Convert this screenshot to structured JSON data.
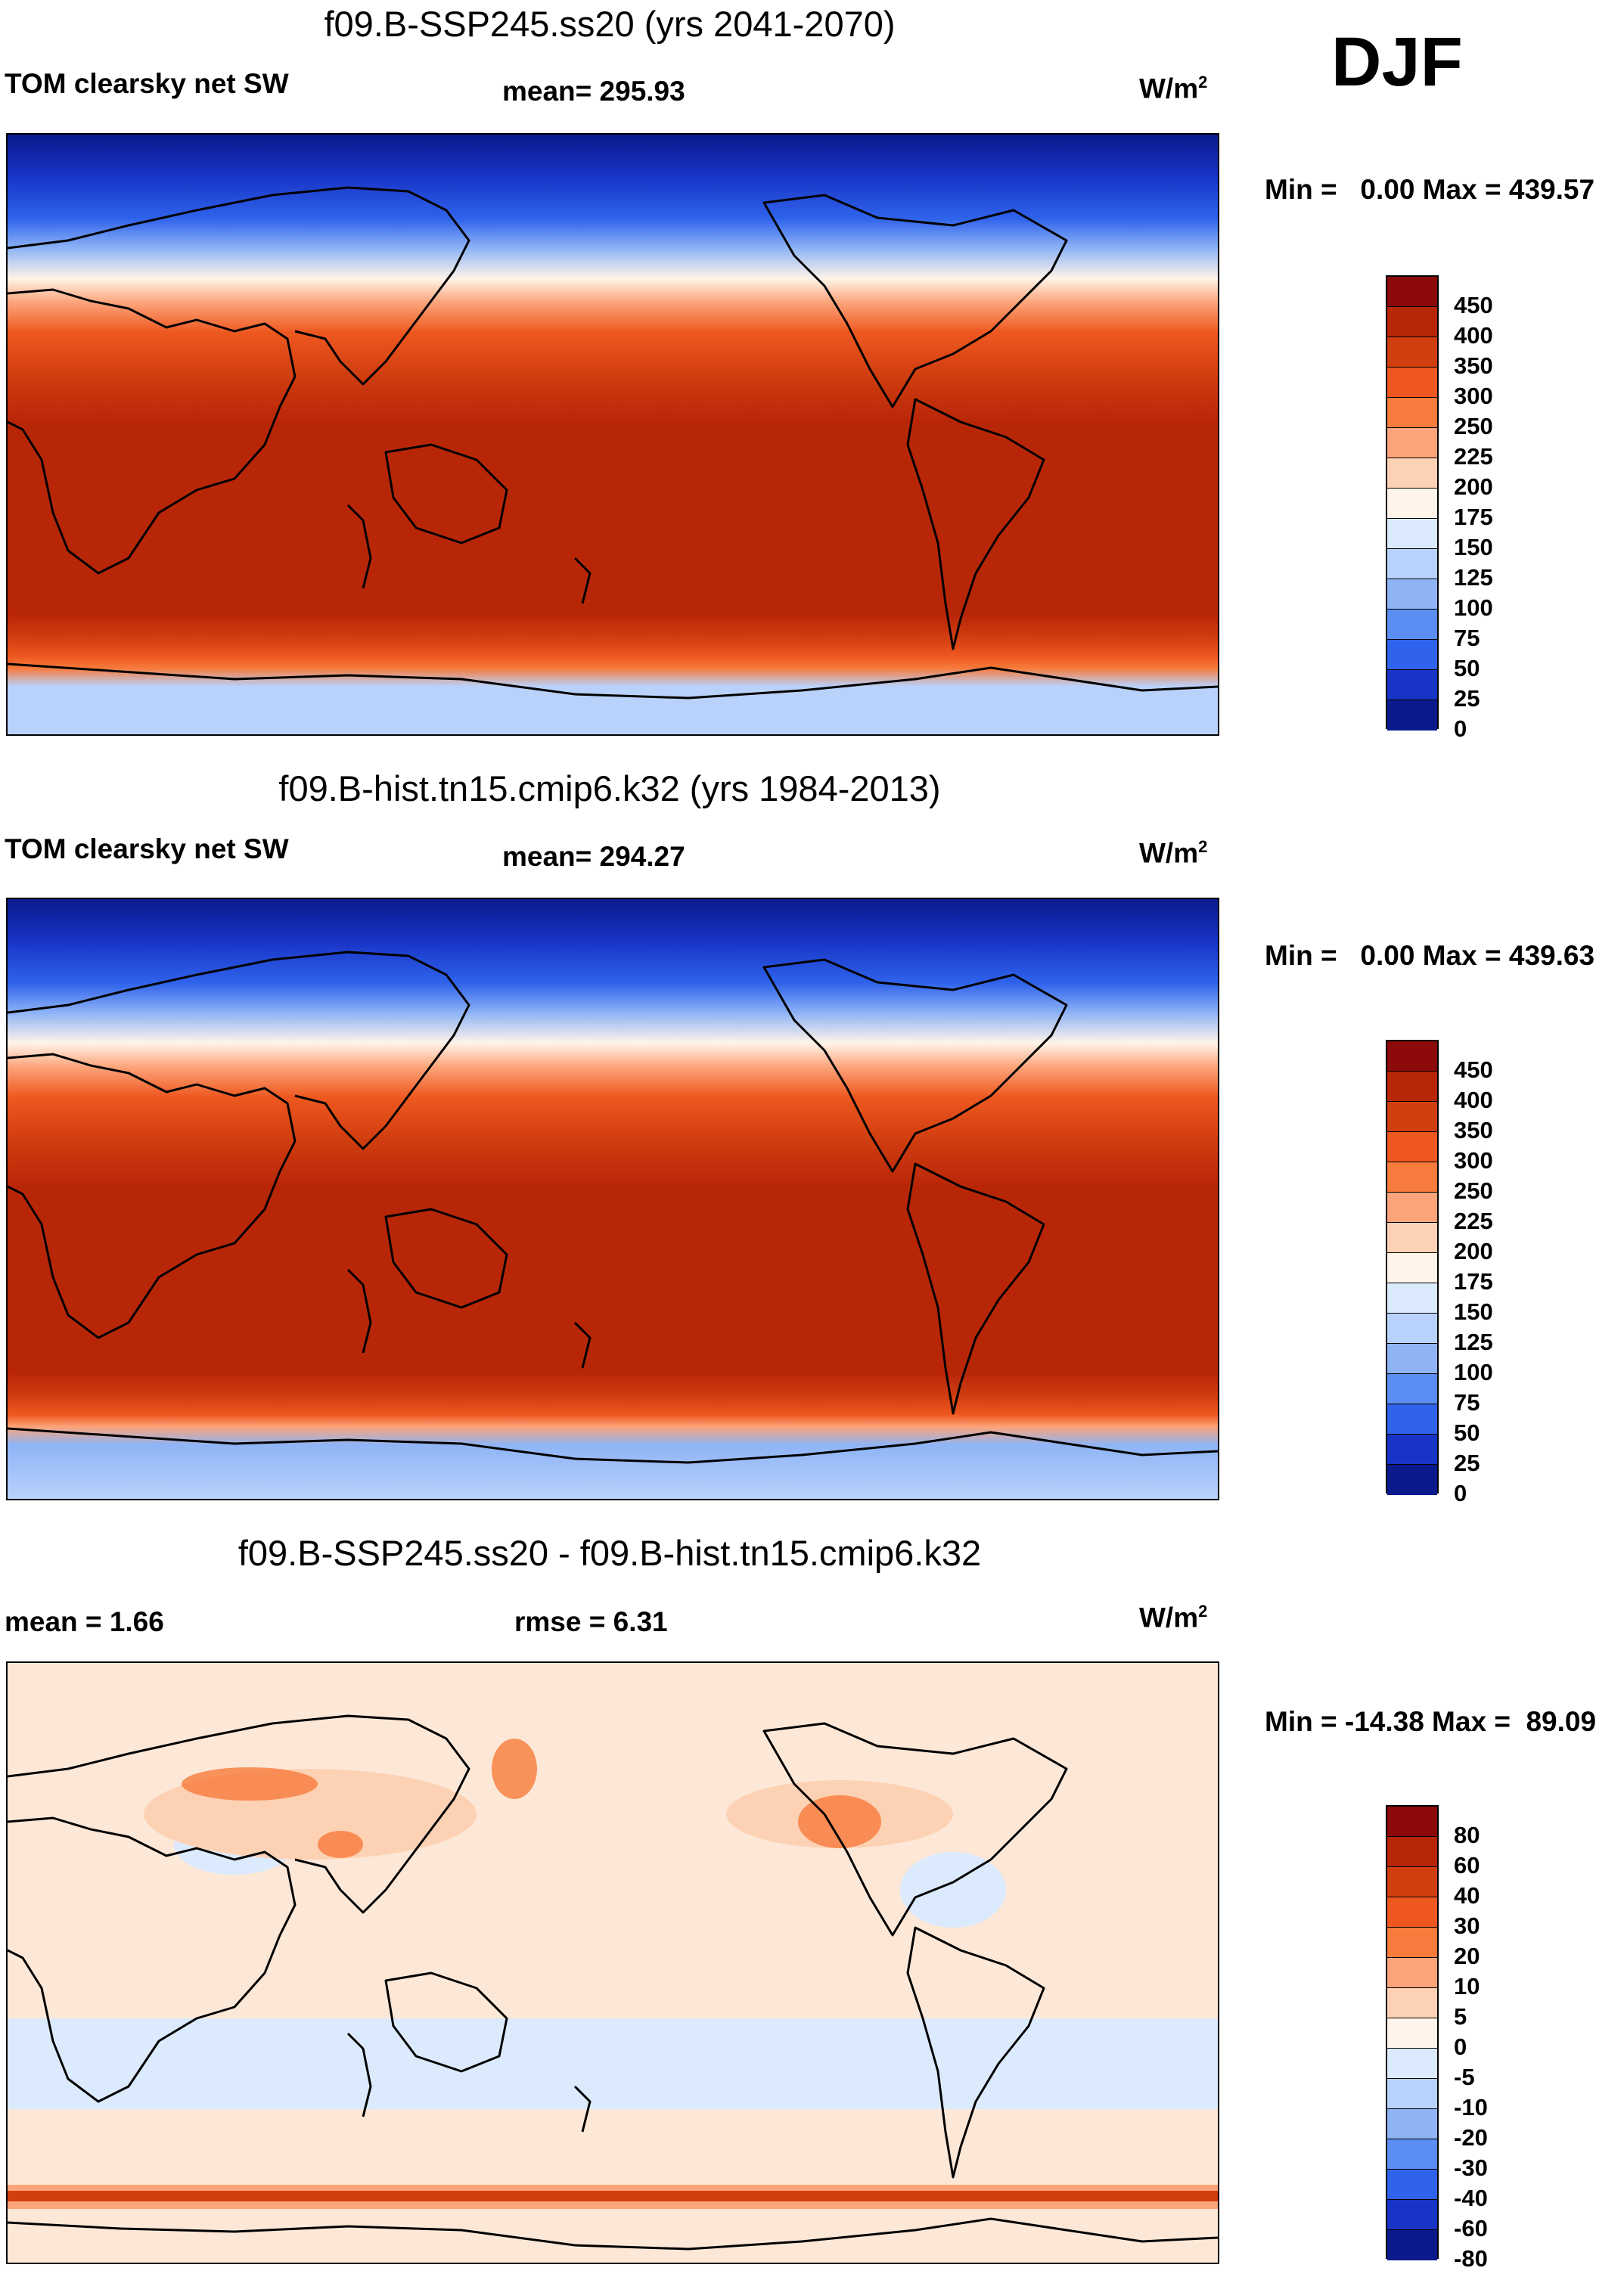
{
  "season": "DJF",
  "panels": [
    {
      "title": "f09.B-SSP245.ss20 (yrs 2041-2070)",
      "left_label": "TOM clearsky net SW",
      "center_label": "mean= 295.93",
      "units_base": "W/m",
      "units_exp": "2",
      "minmax": "Min =   0.00 Max = 439.57",
      "levels": [
        "450",
        "400",
        "350",
        "300",
        "250",
        "225",
        "200",
        "175",
        "150",
        "125",
        "100",
        "75",
        "50",
        "25",
        "0"
      ],
      "colors": [
        "#8c0a0a",
        "#b82608",
        "#d13e10",
        "#ee5820",
        "#f77b3c",
        "#fca47a",
        "#fdd2b4",
        "#fff4e9",
        "#dbeafd",
        "#b9d2fb",
        "#8fb4f6",
        "#5b8ef2",
        "#2f63eb",
        "#1834c6",
        "#0a1a8c"
      ]
    },
    {
      "title": "f09.B-hist.tn15.cmip6.k32 (yrs 1984-2013)",
      "left_label": "TOM clearsky net SW",
      "center_label": "mean= 294.27",
      "units_base": "W/m",
      "units_exp": "2",
      "minmax": "Min =   0.00 Max = 439.63",
      "levels": [
        "450",
        "400",
        "350",
        "300",
        "250",
        "225",
        "200",
        "175",
        "150",
        "125",
        "100",
        "75",
        "50",
        "25",
        "0"
      ],
      "colors": [
        "#8c0a0a",
        "#b82608",
        "#d13e10",
        "#ee5820",
        "#f77b3c",
        "#fca47a",
        "#fdd2b4",
        "#fff4e9",
        "#dbeafd",
        "#b9d2fb",
        "#8fb4f6",
        "#5b8ef2",
        "#2f63eb",
        "#1834c6",
        "#0a1a8c"
      ]
    },
    {
      "title": "f09.B-SSP245.ss20 - f09.B-hist.tn15.cmip6.k32",
      "left_label": "mean =   1.66",
      "center_label": "rmse =   6.31",
      "units_base": "W/m",
      "units_exp": "2",
      "minmax": "Min = -14.38 Max =  89.09",
      "levels": [
        "80",
        "60",
        "40",
        "30",
        "20",
        "10",
        "5",
        "0",
        "-5",
        "-10",
        "-20",
        "-30",
        "-40",
        "-60",
        "-80"
      ],
      "colors": [
        "#8c0a0a",
        "#b82608",
        "#d13e10",
        "#ee5820",
        "#f77b3c",
        "#fca47a",
        "#fdd2b4",
        "#fff4e9",
        "#dbeafd",
        "#b9d2fb",
        "#8fb4f6",
        "#5b8ef2",
        "#2f63eb",
        "#1834c6",
        "#0a1a8c"
      ]
    }
  ]
}
